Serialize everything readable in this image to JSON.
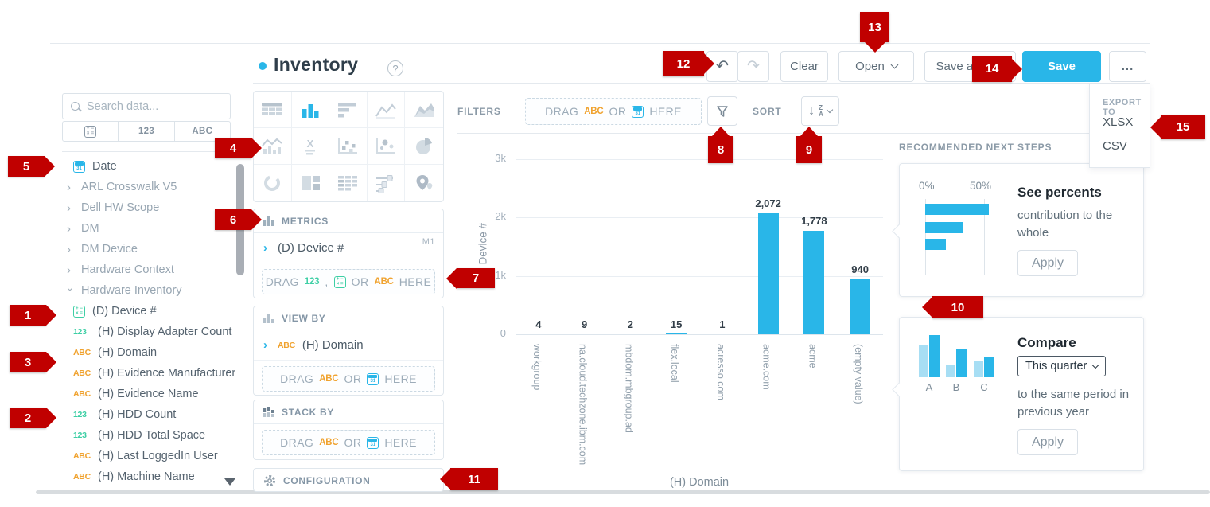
{
  "app": {
    "title": "Inventory",
    "help": "?"
  },
  "toolbar": {
    "clear": "Clear",
    "open": "Open",
    "save_as": "Save as new",
    "save": "Save",
    "more": "..."
  },
  "sidebar": {
    "search_placeholder": "Search data...",
    "tabs": {
      "num": "123",
      "abc": "ABC"
    },
    "fields": [
      {
        "icon": "calendar",
        "label": "Date"
      },
      {
        "icon": "chevron",
        "label": "ARL Crosswalk V5",
        "muted": true
      },
      {
        "icon": "chevron",
        "label": "Dell HW Scope",
        "muted": true
      },
      {
        "icon": "chevron",
        "label": "DM",
        "muted": true
      },
      {
        "icon": "chevron",
        "label": "DM Device",
        "muted": true
      },
      {
        "icon": "chevron",
        "label": "Hardware Context",
        "muted": true
      },
      {
        "icon": "chevron-down",
        "label": "Hardware Inventory",
        "muted": true
      },
      {
        "icon": "formula",
        "label": "(D) Device #"
      },
      {
        "icon": "123",
        "label": "(H) Display Adapter Count"
      },
      {
        "icon": "abc",
        "label": "(H) Domain"
      },
      {
        "icon": "abc",
        "label": "(H) Evidence Manufacturer"
      },
      {
        "icon": "abc",
        "label": "(H) Evidence Name"
      },
      {
        "icon": "123",
        "label": "(H) HDD Count"
      },
      {
        "icon": "123",
        "label": "(H) HDD Total Space"
      },
      {
        "icon": "abc",
        "label": "(H) Last LoggedIn User"
      },
      {
        "icon": "abc",
        "label": "(H) Machine Name"
      }
    ]
  },
  "builder": {
    "metrics": {
      "heading": "METRICS",
      "item": "(D) Device #",
      "tag": "M1"
    },
    "view_by": {
      "heading": "VIEW BY",
      "item": "(H) Domain",
      "item_icon": "ABC"
    },
    "stack_by": {
      "heading": "STACK BY"
    },
    "configuration": {
      "heading": "CONFIGURATION"
    },
    "dropzone": {
      "drag": "DRAG",
      "num": "123",
      "comma": ",",
      "or": "OR",
      "abc": "ABC",
      "here": "HERE"
    }
  },
  "chart_toolbar": {
    "filters": "FILTERS",
    "sort": "SORT"
  },
  "chart_data": {
    "type": "bar",
    "categories": [
      "workgroup",
      "na.cloud.techzone.ibm.com",
      "mbdom.mbgroup.ad",
      "flex.local",
      "acresso.com",
      "acme.com",
      "acme",
      "(empty value)"
    ],
    "values": [
      4,
      9,
      2,
      15,
      1,
      2072,
      1778,
      940
    ],
    "value_labels": [
      "4",
      "9",
      "2",
      "15",
      "1",
      "2,072",
      "1,778",
      "940"
    ],
    "xlabel": "(H) Domain",
    "ylabel": "(D) Device #",
    "ylim": [
      0,
      3000
    ],
    "yticks": [
      "0",
      "1k",
      "2k",
      "3k"
    ],
    "bar_color": "#29b6e8",
    "grid": true,
    "legend": false
  },
  "recommended": {
    "heading": "RECOMMENDED NEXT STEPS",
    "cards": [
      {
        "title": "See percents",
        "description": "contribution to the whole",
        "button": "Apply",
        "ticks": [
          "0%",
          "50%"
        ]
      },
      {
        "title": "Compare",
        "select": "This quarter",
        "description": "to the same period in previous year",
        "button": "Apply",
        "labels": [
          "A",
          "B",
          "C"
        ]
      }
    ]
  },
  "export_menu": {
    "heading": "EXPORT TO",
    "items": [
      "XLSX",
      "CSV"
    ]
  },
  "badges": [
    "1",
    "2",
    "3",
    "4",
    "5",
    "6",
    "7",
    "8",
    "9",
    "10",
    "11",
    "12",
    "13",
    "14",
    "15"
  ],
  "colors": {
    "accent": "#29b6e8",
    "badge_red": "#c00000",
    "teal": "#3ecfa5",
    "orange": "#f0a22e"
  }
}
